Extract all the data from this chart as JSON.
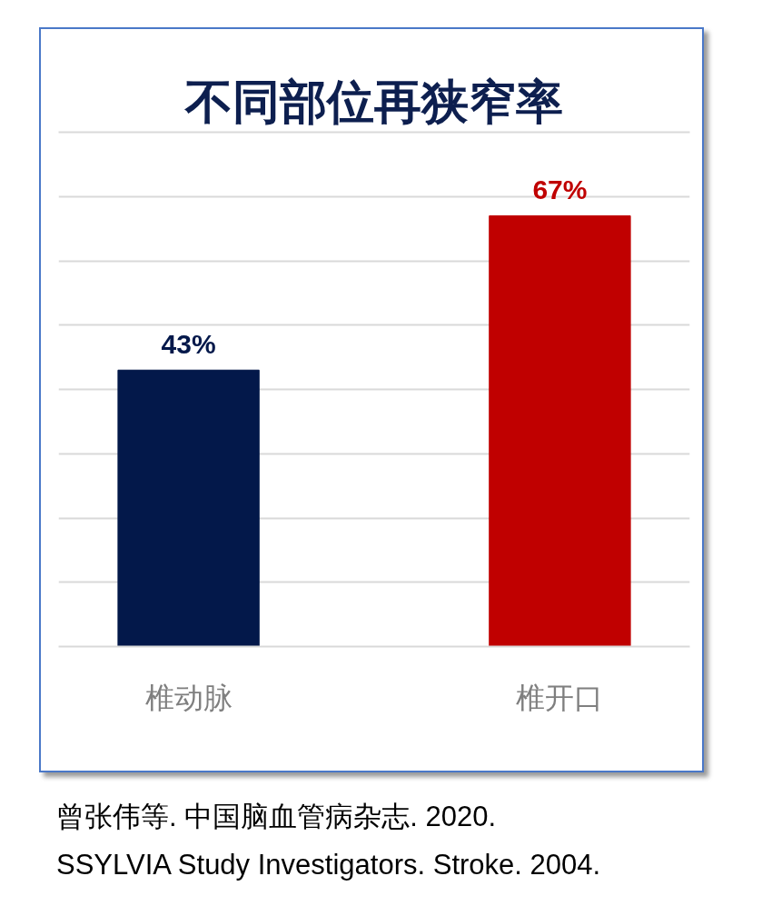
{
  "chart_data": {
    "type": "bar",
    "title": "不同部位再狭窄率",
    "categories": [
      "椎动脉",
      "椎开口"
    ],
    "values": [
      43,
      67
    ],
    "colors": [
      "#03184a",
      "#c00000"
    ],
    "value_labels": [
      "43%",
      "67%"
    ],
    "ylim": [
      0,
      80
    ],
    "yticks": [
      {
        "value": 0,
        "label": null
      },
      {
        "value": 10,
        "label": null
      },
      {
        "value": 20,
        "label": null
      },
      {
        "value": 30,
        "label": null
      },
      {
        "value": 40,
        "label": null
      },
      {
        "value": 50,
        "label": null
      },
      {
        "value": 60,
        "label": null
      },
      {
        "value": 70,
        "label": null
      },
      {
        "value": 80,
        "label": null
      }
    ],
    "grid": "y",
    "tick_labels": "x",
    "annotations": [
      "曾张伟等. 中国脑血管病杂志. 2020.",
      "SSYLVIA Study Investigators. Stroke. 2004."
    ]
  }
}
